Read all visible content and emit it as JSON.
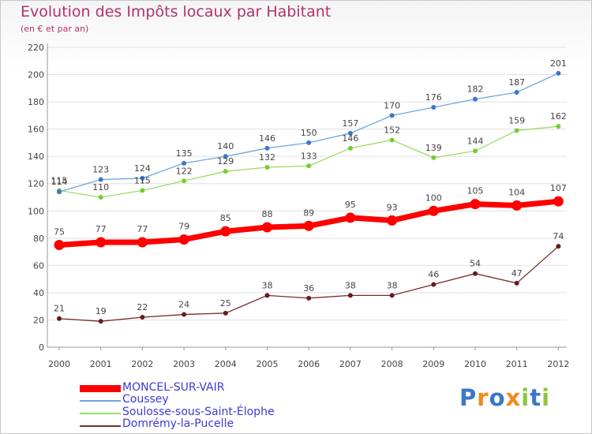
{
  "header": {
    "title": "Evolution des Impôts locaux par Habitant",
    "subtitle": "(en € et par an)"
  },
  "logo": {
    "text": "Proxiti",
    "letters": [
      {
        "ch": "P",
        "color": "#3a78c8"
      },
      {
        "ch": "r",
        "color": "#f28a1e"
      },
      {
        "ch": "o",
        "color": "#3a78c8"
      },
      {
        "ch": "x",
        "color": "#f28a1e"
      },
      {
        "ch": "i",
        "color": "#8cc63f"
      },
      {
        "ch": "t",
        "color": "#3a78c8"
      },
      {
        "ch": "i",
        "color": "#8cc63f"
      }
    ]
  },
  "chart_data": {
    "type": "line",
    "title": "Evolution des Impôts locaux par Habitant",
    "subtitle": "(en € et par an)",
    "xlabel": "",
    "ylabel": "",
    "x": [
      "2000",
      "2001",
      "2002",
      "2003",
      "2004",
      "2005",
      "2006",
      "2007",
      "2008",
      "2009",
      "2010",
      "2011",
      "2012"
    ],
    "ylim": [
      0,
      220
    ],
    "yticks": [
      0,
      20,
      40,
      60,
      80,
      100,
      120,
      140,
      160,
      180,
      200,
      220
    ],
    "grid": true,
    "legend_position": "bottom-left",
    "series": [
      {
        "name": "MONCEL-SUR-VAIR",
        "color": "#ff0000",
        "values": [
          75,
          77,
          77,
          79,
          85,
          88,
          89,
          95,
          93,
          100,
          105,
          104,
          107
        ],
        "labels": [
          "75",
          "77",
          "77",
          "79",
          "85",
          "88",
          "89",
          "95",
          "93",
          "100",
          "105",
          "104",
          "107"
        ],
        "emphasis": true
      },
      {
        "name": "Coussey",
        "color": "#6fa8dc",
        "marker": "#3a78c8",
        "values": [
          114,
          123,
          124,
          135,
          140,
          146,
          150,
          157,
          170,
          176,
          182,
          187,
          201
        ],
        "labels": [
          "114",
          "123",
          "124",
          "135",
          "140",
          "146",
          "150",
          "157",
          "170",
          "176",
          "182",
          "187",
          "201"
        ]
      },
      {
        "name": "Soulosse-sous-Saint-Élophe",
        "color": "#99dd66",
        "marker": "#77cc33",
        "values": [
          115,
          110,
          115,
          122,
          129,
          132,
          133,
          146,
          152,
          139,
          144,
          159,
          162
        ],
        "labels": [
          "115",
          "110",
          "115",
          "122",
          "129",
          "132",
          "133",
          "146",
          "152",
          "139",
          "144",
          "159",
          "162"
        ]
      },
      {
        "name": "Domrémy-la-Pucelle",
        "color": "#7a2a2a",
        "marker": "#6a1a1a",
        "values": [
          21,
          19,
          22,
          24,
          25,
          38,
          36,
          38,
          38,
          46,
          54,
          47,
          74
        ],
        "labels": [
          "21",
          "19",
          "22",
          "24",
          "25",
          "38",
          "36",
          "38",
          "38",
          "46",
          "54",
          "47",
          "74"
        ]
      }
    ]
  }
}
